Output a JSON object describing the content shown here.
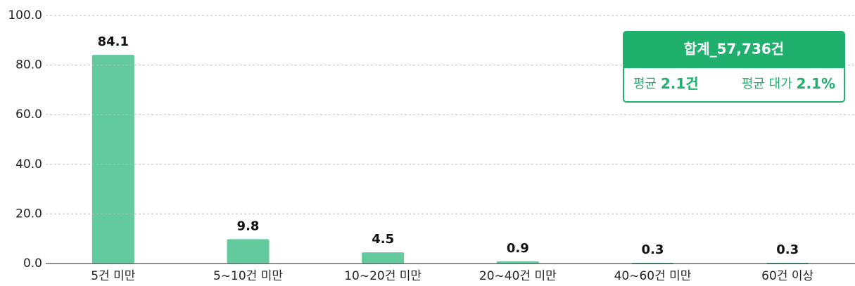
{
  "chart_data": {
    "type": "bar",
    "categories": [
      "5건 미만",
      "5~10건 미만",
      "10~20건 미만",
      "20~40건 미만",
      "40~60건 미만",
      "60건 이상"
    ],
    "values": [
      84.1,
      9.8,
      4.5,
      0.9,
      0.3,
      0.3
    ],
    "color": "#62ca9d",
    "ylim": [
      0,
      100
    ],
    "yticks": [
      {
        "value": 0,
        "label": "0.0"
      },
      {
        "value": 20,
        "label": "20.0"
      },
      {
        "value": 40,
        "label": "40.0"
      },
      {
        "value": 60,
        "label": "60.0"
      },
      {
        "value": 80,
        "label": "80.0"
      },
      {
        "value": 100,
        "label": "100.0"
      }
    ],
    "grid": true,
    "summary": {
      "title": "합계_57,736건",
      "items": [
        {
          "label": "평균",
          "value": "2.1건"
        },
        {
          "label": "평균 대가",
          "value": "2.1%"
        }
      ]
    }
  }
}
